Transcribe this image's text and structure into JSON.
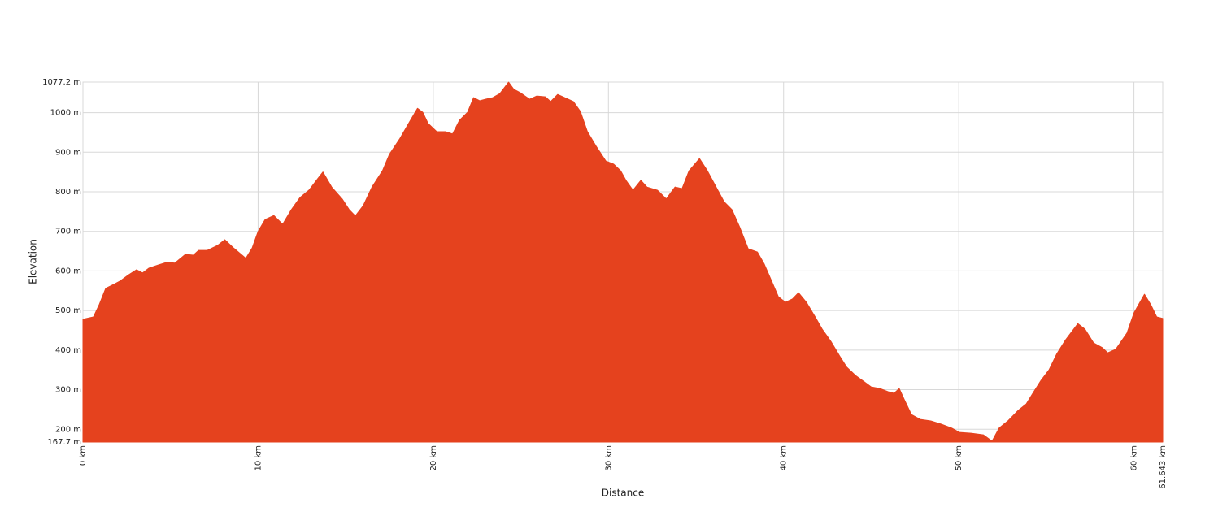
{
  "chart_data": {
    "type": "area",
    "xlabel": "Distance",
    "ylabel": "Elevation",
    "color": "#e5421e",
    "grid": true,
    "xlim": [
      0,
      61.643
    ],
    "ylim": [
      167.7,
      1077.2
    ],
    "xticks": [
      {
        "value": 0,
        "label": "0 km"
      },
      {
        "value": 10,
        "label": "10 km"
      },
      {
        "value": 20,
        "label": "20 km"
      },
      {
        "value": 30,
        "label": "30 km"
      },
      {
        "value": 40,
        "label": "40 km"
      },
      {
        "value": 50,
        "label": "50 km"
      },
      {
        "value": 60,
        "label": "60 km"
      },
      {
        "value": 61.643,
        "label": "61.643 km"
      }
    ],
    "yticks": [
      {
        "value": 167.7,
        "label": "167.7 m"
      },
      {
        "value": 200,
        "label": "200 m"
      },
      {
        "value": 300,
        "label": "300 m"
      },
      {
        "value": 400,
        "label": "400 m"
      },
      {
        "value": 500,
        "label": "500 m"
      },
      {
        "value": 600,
        "label": "600 m"
      },
      {
        "value": 700,
        "label": "700 m"
      },
      {
        "value": 800,
        "label": "800 m"
      },
      {
        "value": 900,
        "label": "900 m"
      },
      {
        "value": 1000,
        "label": "1000 m"
      },
      {
        "value": 1077.2,
        "label": "1077.2 m"
      }
    ],
    "x": [
      0,
      0.6,
      0.93,
      1.3,
      1.76,
      2.1,
      2.6,
      3.06,
      3.4,
      3.76,
      4.3,
      4.8,
      5.25,
      5.85,
      6.3,
      6.6,
      7.1,
      7.7,
      8.1,
      8.6,
      9.3,
      9.66,
      10.0,
      10.4,
      10.9,
      11.4,
      11.9,
      12.4,
      12.9,
      13.4,
      13.7,
      14.2,
      14.8,
      15.2,
      15.55,
      16.0,
      16.5,
      17.1,
      17.5,
      18.1,
      18.7,
      19.1,
      19.4,
      19.7,
      20.2,
      20.7,
      21.1,
      21.5,
      21.96,
      22.3,
      22.65,
      23.0,
      23.4,
      23.8,
      24.3,
      24.6,
      24.98,
      25.5,
      25.9,
      26.4,
      26.7,
      27.1,
      27.5,
      28.0,
      28.4,
      28.8,
      29.3,
      29.85,
      30.3,
      30.7,
      31.0,
      31.4,
      31.85,
      32.2,
      32.8,
      33.3,
      33.8,
      34.2,
      34.6,
      35.2,
      35.65,
      36.1,
      36.6,
      37.05,
      37.5,
      37.98,
      38.5,
      38.9,
      39.3,
      39.7,
      40.1,
      40.5,
      40.85,
      41.3,
      41.8,
      42.2,
      42.7,
      43.2,
      43.6,
      44.1,
      44.6,
      45.0,
      45.5,
      45.96,
      46.3,
      46.6,
      46.9,
      47.3,
      47.8,
      48.4,
      49.0,
      49.6,
      50.05,
      50.7,
      51.4,
      51.9,
      52.3,
      52.8,
      53.4,
      53.85,
      54.2,
      54.7,
      55.15,
      55.6,
      56.1,
      56.8,
      57.2,
      57.7,
      58.2,
      58.5,
      58.96,
      59.6,
      60.0,
      60.6,
      60.96,
      61.3,
      61.643
    ],
    "values": [
      478,
      484,
      515,
      556,
      566,
      574,
      590,
      603,
      595,
      607,
      615,
      622,
      620,
      642,
      640,
      652,
      652,
      665,
      679,
      658,
      632,
      658,
      700,
      730,
      740,
      718,
      755,
      786,
      804,
      833,
      850,
      812,
      782,
      755,
      739,
      765,
      812,
      853,
      895,
      935,
      981,
      1011,
      1001,
      973,
      952,
      952,
      946,
      981,
      1001,
      1038,
      1030,
      1034,
      1038,
      1048,
      1077,
      1059,
      1050,
      1034,
      1042,
      1040,
      1028,
      1046,
      1038,
      1028,
      1003,
      952,
      915,
      878,
      870,
      853,
      829,
      804,
      829,
      812,
      804,
      782,
      812,
      808,
      853,
      884,
      853,
      816,
      775,
      755,
      710,
      656,
      648,
      617,
      576,
      535,
      521,
      529,
      545,
      521,
      484,
      453,
      422,
      385,
      357,
      336,
      320,
      307,
      303,
      295,
      291,
      303,
      274,
      237,
      225,
      221,
      213,
      203,
      192,
      190,
      186,
      170,
      203,
      221,
      248,
      264,
      289,
      324,
      350,
      391,
      426,
      467,
      453,
      418,
      406,
      393,
      402,
      443,
      494,
      541,
      515,
      484,
      480
    ]
  }
}
